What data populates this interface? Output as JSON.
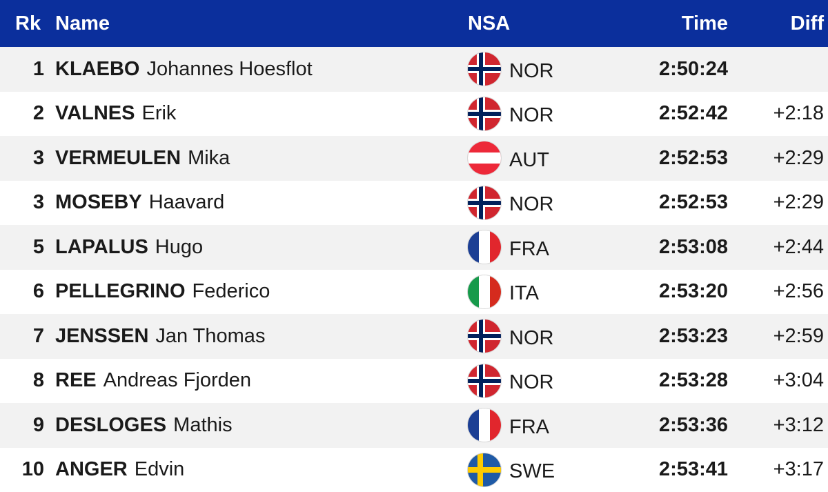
{
  "header": {
    "rank": "Rk",
    "name": "Name",
    "nsa": "NSA",
    "time": "Time",
    "diff": "Diff"
  },
  "rows": [
    {
      "rank": "1",
      "last": "KLAEBO",
      "first": "Johannes Hoesflot",
      "nsa": "NOR",
      "flag": "norway-flag-icon",
      "time": "2:50:24",
      "diff": ""
    },
    {
      "rank": "2",
      "last": "VALNES",
      "first": "Erik",
      "nsa": "NOR",
      "flag": "norway-flag-icon",
      "time": "2:52:42",
      "diff": "+2:18"
    },
    {
      "rank": "3",
      "last": "VERMEULEN",
      "first": "Mika",
      "nsa": "AUT",
      "flag": "austria-flag-icon",
      "time": "2:52:53",
      "diff": "+2:29"
    },
    {
      "rank": "3",
      "last": "MOSEBY",
      "first": "Haavard",
      "nsa": "NOR",
      "flag": "norway-flag-icon",
      "time": "2:52:53",
      "diff": "+2:29"
    },
    {
      "rank": "5",
      "last": "LAPALUS",
      "first": "Hugo",
      "nsa": "FRA",
      "flag": "france-flag-icon",
      "time": "2:53:08",
      "diff": "+2:44"
    },
    {
      "rank": "6",
      "last": "PELLEGRINO",
      "first": "Federico",
      "nsa": "ITA",
      "flag": "italy-flag-icon",
      "time": "2:53:20",
      "diff": "+2:56"
    },
    {
      "rank": "7",
      "last": "JENSSEN",
      "first": "Jan Thomas",
      "nsa": "NOR",
      "flag": "norway-flag-icon",
      "time": "2:53:23",
      "diff": "+2:59"
    },
    {
      "rank": "8",
      "last": "REE",
      "first": "Andreas Fjorden",
      "nsa": "NOR",
      "flag": "norway-flag-icon",
      "time": "2:53:28",
      "diff": "+3:04"
    },
    {
      "rank": "9",
      "last": "DESLOGES",
      "first": "Mathis",
      "nsa": "FRA",
      "flag": "france-flag-icon",
      "time": "2:53:36",
      "diff": "+3:12"
    },
    {
      "rank": "10",
      "last": "ANGER",
      "first": "Edvin",
      "nsa": "SWE",
      "flag": "sweden-flag-icon",
      "time": "2:53:41",
      "diff": "+3:17"
    }
  ],
  "colors": {
    "header_bg": "#0b2f9c",
    "row_alt_bg": "#f2f2f2"
  }
}
